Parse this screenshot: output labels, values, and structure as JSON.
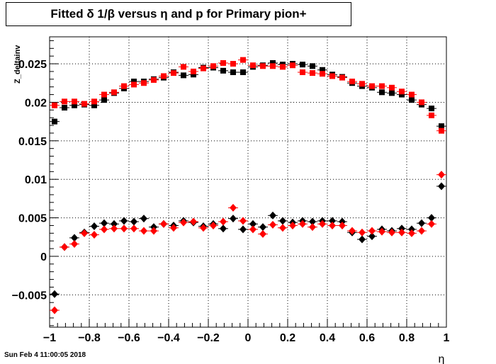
{
  "title": "Fitted δ 1/β versus η and p for Primary pion+",
  "footer": "Sun Feb  4 11:00:05 2018",
  "chart_data": {
    "type": "scatter",
    "title": "Fitted δ 1/β versus η and p for Primary pion+",
    "xlabel": "η",
    "ylabel": "Z_deltainv",
    "xlim": [
      -1,
      1
    ],
    "ylim": [
      -0.0092,
      0.0285
    ],
    "grid": true,
    "x_ticks": [
      "−1",
      "−0.8",
      "−0.6",
      "−0.4",
      "−0.2",
      "0",
      "0.2",
      "0.4",
      "0.6",
      "0.8",
      "1"
    ],
    "y_ticks": [
      "−0.005",
      "0",
      "0.005",
      "0.01",
      "0.015",
      "0.02",
      "0.025"
    ],
    "x_tick_values": [
      -1,
      -0.8,
      -0.6,
      -0.4,
      -0.2,
      0,
      0.2,
      0.4,
      0.6,
      0.8,
      1
    ],
    "y_tick_values": [
      -0.005,
      0,
      0.005,
      0.01,
      0.015,
      0.02,
      0.025
    ],
    "x": [
      -0.975,
      -0.925,
      -0.875,
      -0.825,
      -0.775,
      -0.725,
      -0.675,
      -0.625,
      -0.575,
      -0.525,
      -0.475,
      -0.425,
      -0.375,
      -0.325,
      -0.275,
      -0.225,
      -0.175,
      -0.125,
      -0.075,
      -0.025,
      0.025,
      0.075,
      0.125,
      0.175,
      0.225,
      0.275,
      0.325,
      0.375,
      0.425,
      0.475,
      0.525,
      0.575,
      0.625,
      0.675,
      0.725,
      0.775,
      0.825,
      0.875,
      0.925,
      0.975
    ],
    "series": [
      {
        "marker": "square",
        "color": "#000000",
        "values": [
          0.0175,
          0.0193,
          0.0196,
          0.0197,
          0.0196,
          0.0203,
          0.0212,
          0.0218,
          0.0227,
          0.0227,
          0.023,
          0.0232,
          0.0239,
          0.0235,
          0.0236,
          0.0245,
          0.0245,
          0.0241,
          0.0239,
          0.0239,
          0.0246,
          0.0248,
          0.0251,
          0.0249,
          0.025,
          0.0249,
          0.0247,
          0.0242,
          0.0236,
          0.0233,
          0.0225,
          0.0221,
          0.0219,
          0.0213,
          0.0212,
          0.021,
          0.0203,
          0.0197,
          0.0192,
          0.0169
        ]
      },
      {
        "marker": "square",
        "color": "#ff0000",
        "values": [
          0.0196,
          0.0201,
          0.0201,
          0.0198,
          0.0201,
          0.021,
          0.0213,
          0.0221,
          0.0223,
          0.0225,
          0.0229,
          0.0234,
          0.0238,
          0.0246,
          0.024,
          0.0244,
          0.0247,
          0.0251,
          0.025,
          0.0255,
          0.0248,
          0.0247,
          0.0247,
          0.0246,
          0.0248,
          0.0239,
          0.0238,
          0.0237,
          0.0234,
          0.0232,
          0.0227,
          0.0224,
          0.0221,
          0.0221,
          0.0219,
          0.0214,
          0.021,
          0.02,
          0.0183,
          0.0163
        ]
      },
      {
        "marker": "diamond",
        "color": "#000000",
        "values": [
          -0.0049,
          0.0012,
          0.0024,
          0.0031,
          0.0039,
          0.0043,
          0.0042,
          0.0046,
          0.0045,
          0.0049,
          0.0038,
          0.0042,
          0.004,
          0.0046,
          0.0044,
          0.0039,
          0.0042,
          0.0036,
          0.0049,
          0.0035,
          0.0042,
          0.0038,
          0.0053,
          0.0046,
          0.0044,
          0.0046,
          0.0045,
          0.0046,
          0.0046,
          0.0045,
          0.0031,
          0.0022,
          0.0026,
          0.0035,
          0.0033,
          0.0036,
          0.0035,
          0.0043,
          0.005,
          0.0091
        ]
      },
      {
        "marker": "diamond",
        "color": "#ff0000",
        "values": [
          -0.007,
          0.0012,
          0.0016,
          0.003,
          0.0028,
          0.0035,
          0.0036,
          0.0036,
          0.0036,
          0.0033,
          0.0033,
          0.0042,
          0.0037,
          0.0044,
          0.0045,
          0.0037,
          0.004,
          0.0045,
          0.0063,
          0.0046,
          0.0035,
          0.0029,
          0.0041,
          0.0037,
          0.004,
          0.0042,
          0.0038,
          0.0042,
          0.004,
          0.004,
          0.0033,
          0.0031,
          0.0033,
          0.0032,
          0.0031,
          0.0031,
          0.003,
          0.0033,
          0.0042,
          0.0106
        ]
      }
    ]
  }
}
